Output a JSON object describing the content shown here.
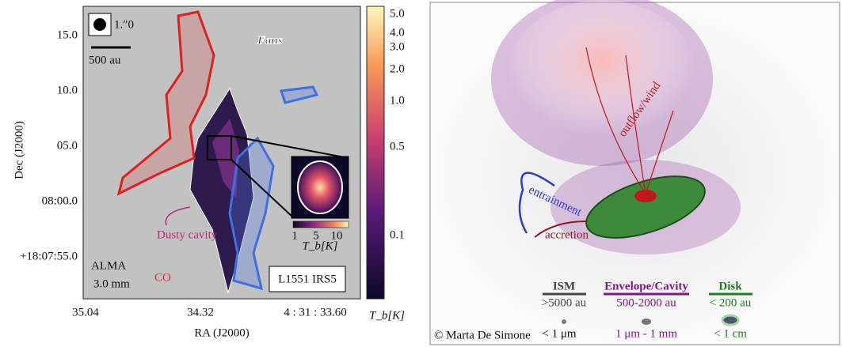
{
  "left_panel": {
    "beam": "1.″0",
    "scale_bar": "500 au",
    "logo": "Faus",
    "y_ticks": [
      "15.0",
      "10.0",
      "05.0",
      "08:00.0",
      "+18:07:55.0"
    ],
    "y_label": "Dec (J2000)",
    "x_ticks": [
      "35.04",
      "34.32",
      "4 : 31 : 33.60"
    ],
    "x_label": "RA (J2000)",
    "annotation": "Dusty cavity",
    "telescope": "ALMA",
    "wavelength": "3.0 mm",
    "molecule": "CO",
    "source": "L1551 IRS5",
    "inset_ticks": [
      "1",
      "5",
      "10"
    ],
    "inset_label": "T_b[K]",
    "colorbar_ticks": [
      "5.0",
      "4.0",
      "3.0",
      "2.0",
      "1.0",
      "0.5",
      "0.1"
    ],
    "colorbar_label": "T_b[K]"
  },
  "right_panel": {
    "outflow": "outflow/wind",
    "entrainment": "entrainment",
    "accretion": "accretion",
    "legend": [
      {
        "name": "ISM",
        "size": ">5000 au",
        "grain": "< 1 μm"
      },
      {
        "name": "Envelope/Cavity",
        "size": "500-2000 au",
        "grain": "1 μm - 1 mm"
      },
      {
        "name": "Disk",
        "size": "< 200 au",
        "grain": "< 1 cm"
      }
    ],
    "credit": "© Marta De Simone"
  }
}
